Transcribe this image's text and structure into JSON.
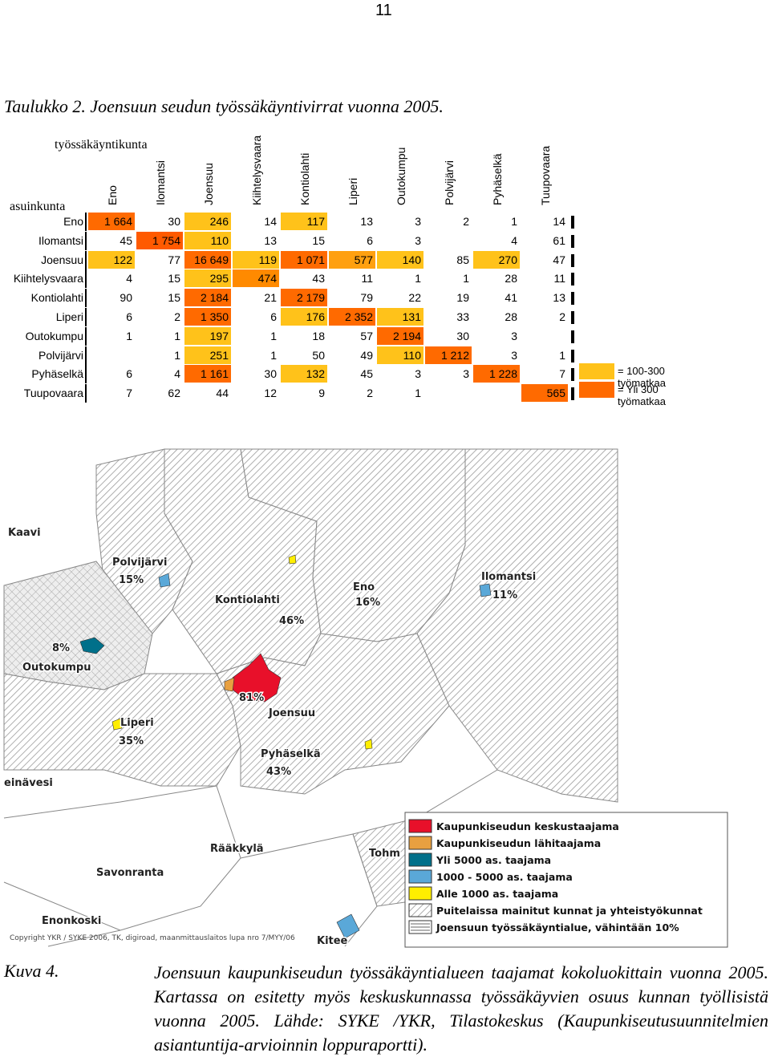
{
  "page_number": "11",
  "table": {
    "title": "Taulukko 2. Joensuun seudun työssäkäyntivirrat vuonna 2005.",
    "column_header": "työssäkäyntikunta",
    "row_header": "asuinkunta",
    "columns": [
      "Eno",
      "Ilomantsi",
      "Joensuu",
      "Kiihtelysvaara",
      "Kontiolahti",
      "Liperi",
      "Outokumpu",
      "Polvijärvi",
      "Pyhäselkä",
      "Tuupovaara"
    ],
    "rows": [
      {
        "name": "Eno",
        "cells": [
          "1 664",
          "30",
          "246",
          "14",
          "117",
          "13",
          "3",
          "2",
          "1",
          "14"
        ],
        "fills": [
          "#ff6a00",
          null,
          "#ffc21a",
          null,
          "#ffc21a",
          null,
          null,
          null,
          null,
          null
        ]
      },
      {
        "name": "Ilomantsi",
        "cells": [
          "45",
          "1 754",
          "110",
          "13",
          "15",
          "6",
          "3",
          null,
          "4",
          "61"
        ],
        "fills": [
          null,
          "#ff5a00",
          "#ffc21a",
          null,
          null,
          null,
          null,
          null,
          null,
          null
        ]
      },
      {
        "name": "Joensuu",
        "cells": [
          "122",
          "77",
          "16 649",
          "119",
          "1 071",
          "577",
          "140",
          "85",
          "270",
          "47"
        ],
        "fills": [
          "#ffc21a",
          null,
          "#ff6a00",
          "#ffc21a",
          "#ff6a00",
          "#ffa010",
          "#ffc21a",
          null,
          "#ffc21a",
          null
        ]
      },
      {
        "name": "Kiihtelysvaara",
        "cells": [
          "4",
          "15",
          "295",
          "474",
          "43",
          "11",
          "1",
          "1",
          "28",
          "11"
        ],
        "fills": [
          null,
          null,
          "#ffc21a",
          "#ff8a00",
          null,
          null,
          null,
          null,
          null,
          null
        ]
      },
      {
        "name": "Kontiolahti",
        "cells": [
          "90",
          "15",
          "2 184",
          "21",
          "2 179",
          "79",
          "22",
          "19",
          "41",
          "13"
        ],
        "fills": [
          null,
          null,
          "#ff6a00",
          null,
          "#ff6a00",
          null,
          null,
          null,
          null,
          null
        ]
      },
      {
        "name": "Liperi",
        "cells": [
          "6",
          "2",
          "1 350",
          "6",
          "176",
          "2 352",
          "131",
          "33",
          "28",
          "2"
        ],
        "fills": [
          null,
          null,
          "#ff6a00",
          null,
          "#ffc21a",
          "#ff6a00",
          "#ffc21a",
          null,
          null,
          null
        ]
      },
      {
        "name": "Outokumpu",
        "cells": [
          "1",
          "1",
          "197",
          "1",
          "18",
          "57",
          "2 194",
          "30",
          "3",
          null
        ],
        "fills": [
          null,
          null,
          "#ffc21a",
          null,
          null,
          null,
          "#ff6a00",
          null,
          null,
          null
        ]
      },
      {
        "name": "Polvijärvi",
        "cells": [
          null,
          "1",
          "251",
          "1",
          "50",
          "49",
          "110",
          "1 212",
          "3",
          "1"
        ],
        "fills": [
          null,
          null,
          "#ffc21a",
          null,
          null,
          null,
          "#ffc21a",
          "#ff6a00",
          null,
          null
        ]
      },
      {
        "name": "Pyhäselkä",
        "cells": [
          "6",
          "4",
          "1 161",
          "30",
          "132",
          "45",
          "3",
          "3",
          "1 228",
          "7"
        ],
        "fills": [
          null,
          null,
          "#ff6a00",
          null,
          "#ffc21a",
          null,
          null,
          null,
          "#ff6a00",
          null
        ]
      },
      {
        "name": "Tuupovaara",
        "cells": [
          "7",
          "62",
          "44",
          "12",
          "9",
          "2",
          "1",
          null,
          null,
          "565"
        ],
        "fills": [
          null,
          null,
          null,
          null,
          null,
          null,
          null,
          null,
          null,
          "#ff6a00"
        ]
      }
    ],
    "legend": [
      {
        "label": "= 100-300 työmatkaa",
        "color": "#ffc21a"
      },
      {
        "label": "= Yli 300 työmatkaa",
        "color": "#ff6a00"
      }
    ]
  },
  "map": {
    "labels": [
      "Kaavi",
      "Polvijärvi",
      "15%",
      "Kontiolahti",
      "46%",
      "Eno",
      "16%",
      "Ilomantsi",
      "11%",
      "8%",
      "Outokumpu",
      "81%",
      "Joensuu",
      "Liperi",
      "35%",
      "Pyhäselkä",
      "43%",
      "einävesi",
      "Rääkkylä",
      "Tohm",
      "Savonranta",
      "Enonkoski",
      "Kitee"
    ],
    "legend": [
      {
        "label": "Kaupunkiseudun keskustaajama",
        "color": "#e8102a"
      },
      {
        "label": "Kaupunkiseudun lähitaajama",
        "color": "#e8a040"
      },
      {
        "label": "Yli 5000 as. taajama",
        "color": "#00708a"
      },
      {
        "label": "1000 - 5000 as. taajama",
        "color": "#5aa8d8"
      },
      {
        "label": "Alle 1000 as. taajama",
        "color": "#ffee00"
      },
      {
        "label": "Puitelaissa mainitut kunnat ja yhteistyökunnat",
        "color": "hatch"
      },
      {
        "label": "Joensuun työssäkäyntialue, vähintään 10%",
        "color": "lines"
      }
    ],
    "copyright": "Copyright YKR / SYKE 2006, TK, digiroad, maanmittauslaitos lupa nro 7/MYY/06"
  },
  "caption": {
    "label": "Kuva 4.",
    "text": "Joensuun kaupunkiseudun työssäkäyntialueen taajamat kokoluokittain vuonna 2005. Kartassa on esitetty myös keskuskunnassa työssäkäyvien osuus kunnan työllisistä vuonna 2005. Lähde: SYKE /YKR, Tilastokeskus (Kaupunkiseutusuunnitelmien asiantuntija-arvioinnin loppuraportti)."
  }
}
